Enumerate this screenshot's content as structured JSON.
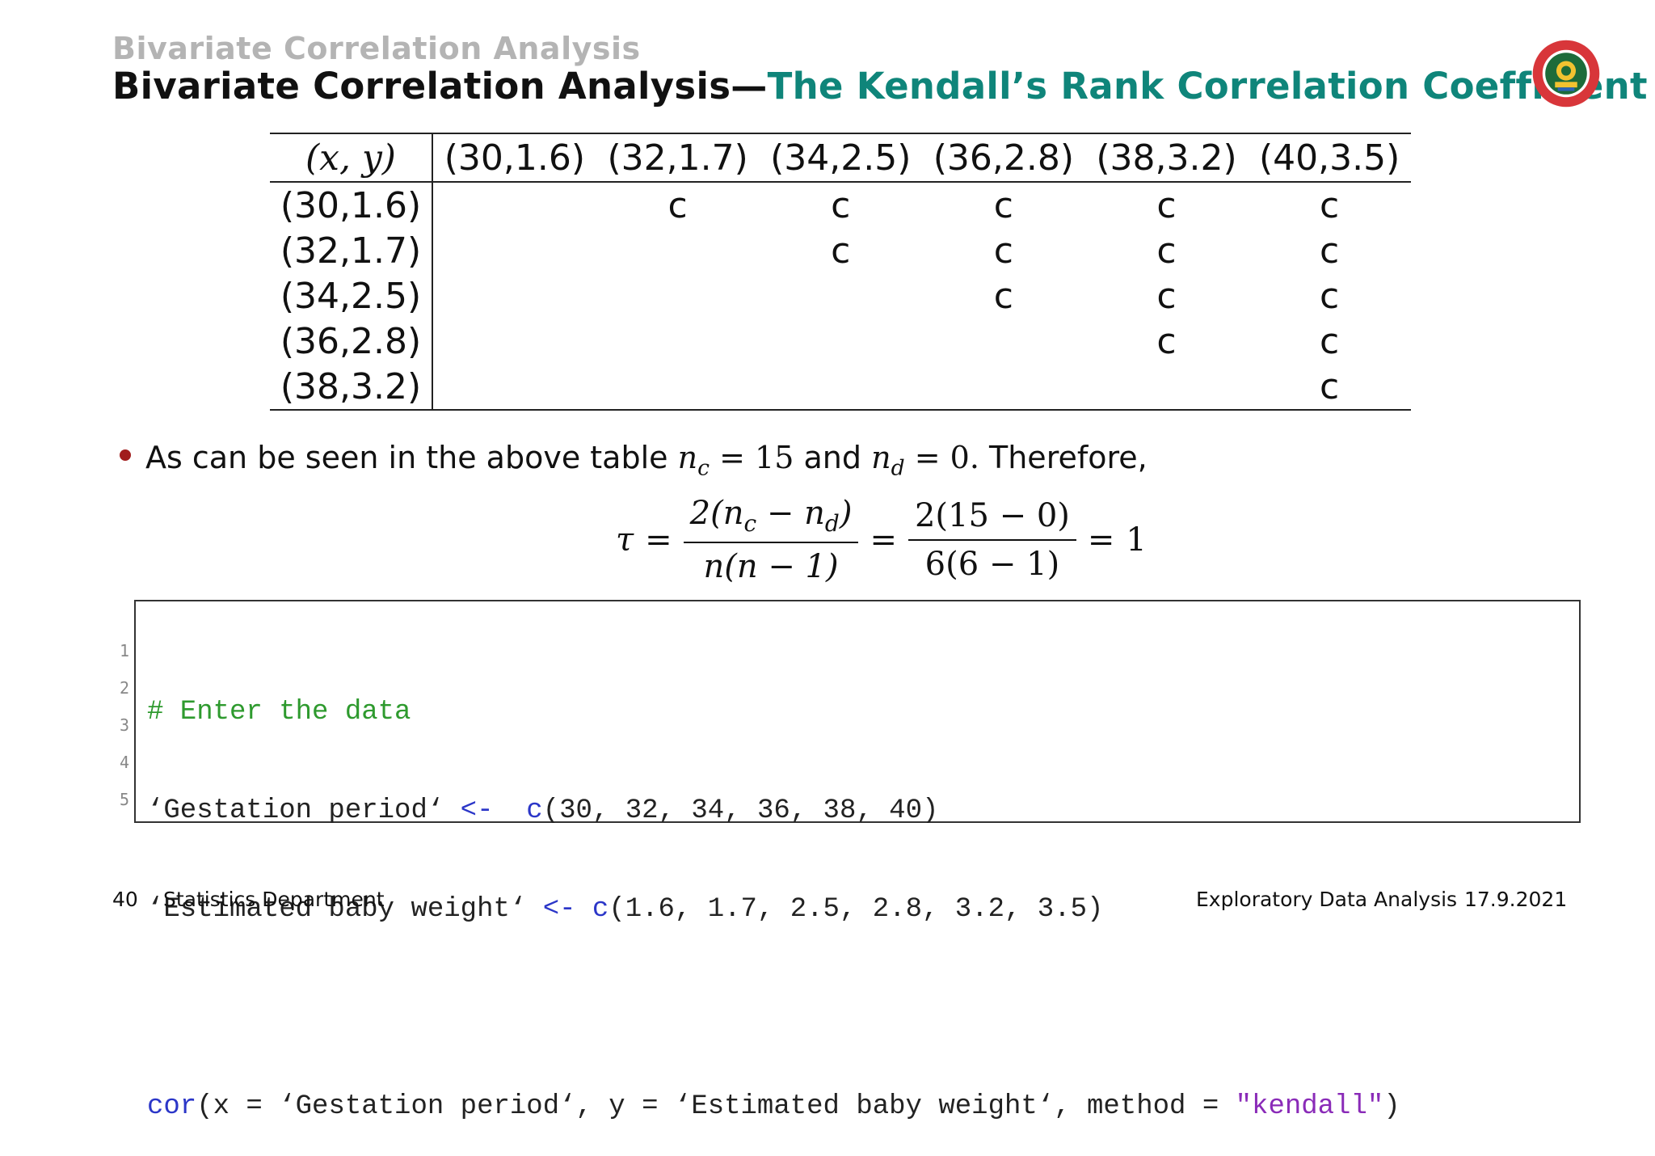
{
  "header": {
    "section": "Bivariate Correlation Analysis",
    "title_main": "Bivariate Correlation Analysis",
    "title_dash": "—",
    "title_accent": "The Kendall’s Rank Correlation Coefficient"
  },
  "colors": {
    "accent": "#0f857a",
    "bullet": "#a11c1c",
    "section": "#b4b4b4"
  },
  "table": {
    "corner": "(x, y)",
    "columns": [
      "(30,1.6)",
      "(32,1.7)",
      "(34,2.5)",
      "(36,2.8)",
      "(38,3.2)",
      "(40,3.5)"
    ],
    "rows": [
      {
        "label": "(30,1.6)",
        "cells": [
          "",
          "c",
          "c",
          "c",
          "c",
          "c"
        ]
      },
      {
        "label": "(32,1.7)",
        "cells": [
          "",
          "",
          "c",
          "c",
          "c",
          "c"
        ]
      },
      {
        "label": "(34,2.5)",
        "cells": [
          "",
          "",
          "",
          "c",
          "c",
          "c"
        ]
      },
      {
        "label": "(36,2.8)",
        "cells": [
          "",
          "",
          "",
          "",
          "c",
          "c"
        ]
      },
      {
        "label": "(38,3.2)",
        "cells": [
          "",
          "",
          "",
          "",
          "",
          "c"
        ]
      }
    ]
  },
  "bullet": {
    "text1": "As can be seen in the above table",
    "nc_value": "15",
    "text2": "and",
    "nd_value": "0",
    "text3": "Therefore,"
  },
  "formula": {
    "tau": "τ",
    "num1": "2(n",
    "den1": "n(n − 1)",
    "num2": "2(15 − 0)",
    "den2": "6(6 − 1)",
    "result": "1"
  },
  "code": {
    "line_numbers": [
      "1",
      "2",
      "3",
      "4",
      "5"
    ],
    "l1_comment": "# Enter the data",
    "l2_var": "‘Gestation period‘ ",
    "l2_op": "<-",
    "l2_fn": "c",
    "l2_args": "(30, 32, 34, 36, 38, 40)",
    "l3_var": "‘Estimated baby weight‘ ",
    "l3_op": "<-",
    "l3_fn": "c",
    "l3_args": "(1.6, 1.7, 2.5, 2.8, 3.2, 3.5)",
    "l5_fn": "cor",
    "l5_args": "(x = ‘Gestation period‘, y = ‘Estimated baby weight‘, method = ",
    "l5_str": "\"kendall\"",
    "l5_end": ")"
  },
  "footer": {
    "page": "40",
    "dept": "Statistics Department",
    "course": "Exploratory Data Analysis",
    "date": "17.9.2021"
  }
}
